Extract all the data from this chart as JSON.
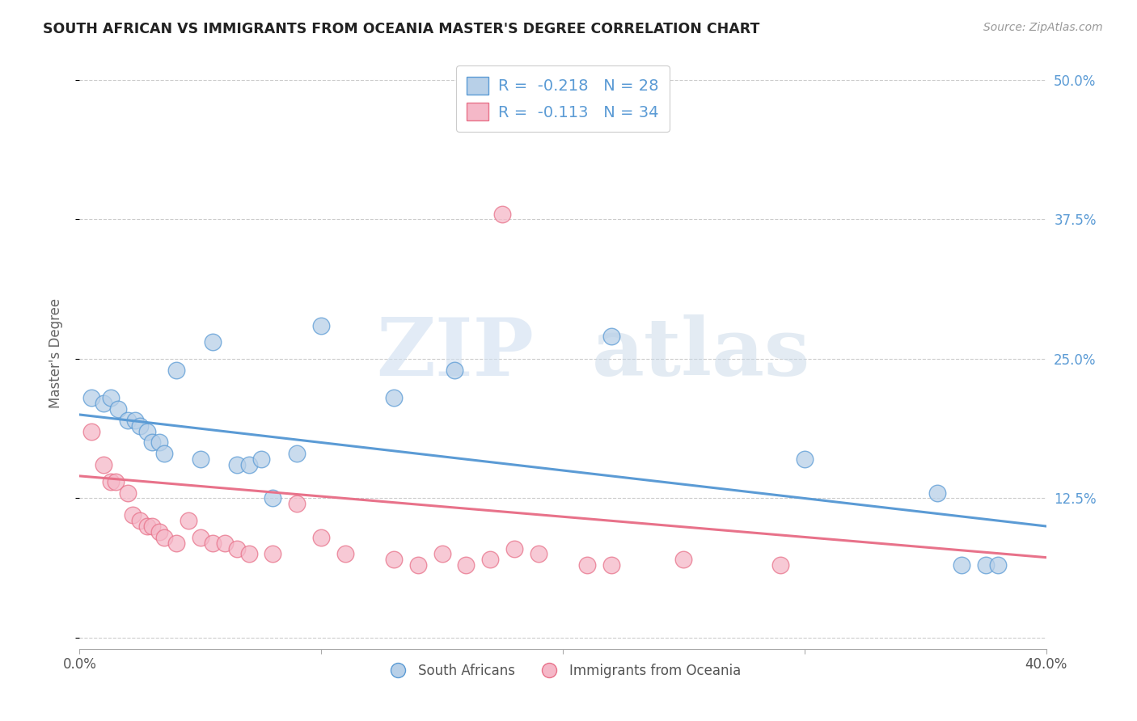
{
  "title": "SOUTH AFRICAN VS IMMIGRANTS FROM OCEANIA MASTER'S DEGREE CORRELATION CHART",
  "source": "Source: ZipAtlas.com",
  "ylabel": "Master's Degree",
  "xlim": [
    0.0,
    0.4
  ],
  "ylim": [
    -0.01,
    0.52
  ],
  "yticks": [
    0.0,
    0.125,
    0.25,
    0.375,
    0.5
  ],
  "blue_R": "-0.218",
  "blue_N": "28",
  "pink_R": "-0.113",
  "pink_N": "34",
  "blue_color": "#b8d0e8",
  "pink_color": "#f5b8c8",
  "blue_line_color": "#5b9bd5",
  "pink_line_color": "#e8728a",
  "watermark_zip": "ZIP",
  "watermark_atlas": "atlas",
  "blue_scatter_x": [
    0.005,
    0.01,
    0.013,
    0.016,
    0.02,
    0.023,
    0.025,
    0.028,
    0.03,
    0.033,
    0.035,
    0.04,
    0.05,
    0.055,
    0.065,
    0.07,
    0.075,
    0.08,
    0.09,
    0.1,
    0.13,
    0.155,
    0.22,
    0.3,
    0.355,
    0.365,
    0.375,
    0.38
  ],
  "blue_scatter_y": [
    0.215,
    0.21,
    0.215,
    0.205,
    0.195,
    0.195,
    0.19,
    0.185,
    0.175,
    0.175,
    0.165,
    0.24,
    0.16,
    0.265,
    0.155,
    0.155,
    0.16,
    0.125,
    0.165,
    0.28,
    0.215,
    0.24,
    0.27,
    0.16,
    0.13,
    0.065,
    0.065,
    0.065
  ],
  "pink_scatter_x": [
    0.005,
    0.01,
    0.013,
    0.015,
    0.02,
    0.022,
    0.025,
    0.028,
    0.03,
    0.033,
    0.035,
    0.04,
    0.045,
    0.05,
    0.055,
    0.06,
    0.065,
    0.07,
    0.08,
    0.09,
    0.1,
    0.11,
    0.13,
    0.14,
    0.15,
    0.16,
    0.17,
    0.175,
    0.18,
    0.19,
    0.21,
    0.22,
    0.25,
    0.29
  ],
  "pink_scatter_y": [
    0.185,
    0.155,
    0.14,
    0.14,
    0.13,
    0.11,
    0.105,
    0.1,
    0.1,
    0.095,
    0.09,
    0.085,
    0.105,
    0.09,
    0.085,
    0.085,
    0.08,
    0.075,
    0.075,
    0.12,
    0.09,
    0.075,
    0.07,
    0.065,
    0.075,
    0.065,
    0.07,
    0.38,
    0.08,
    0.075,
    0.065,
    0.065,
    0.07,
    0.065
  ],
  "blue_trendline_x": [
    0.0,
    0.4
  ],
  "blue_trendline_y": [
    0.2,
    0.1
  ],
  "pink_trendline_x": [
    0.0,
    0.4
  ],
  "pink_trendline_y": [
    0.145,
    0.072
  ],
  "grid_color": "#cccccc",
  "background_color": "#ffffff",
  "legend_blue_label": "R =  -0.218   N = 28",
  "legend_pink_label": "R =  -0.113   N = 34"
}
